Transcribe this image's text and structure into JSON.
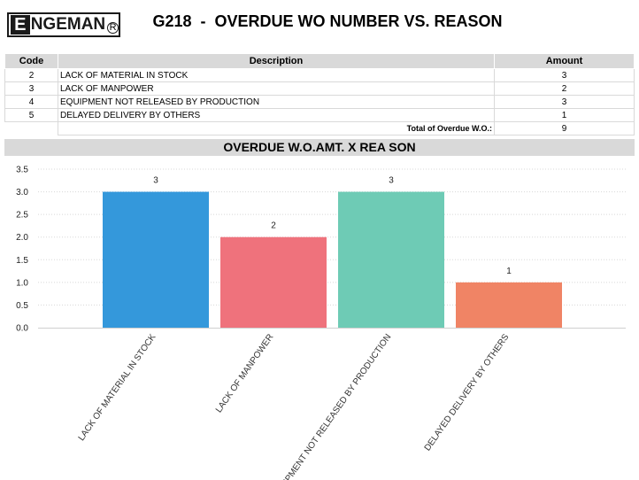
{
  "header": {
    "logo_text": "ENGEMAN",
    "logo_initial": "E",
    "logo_rest": "NGEMAN",
    "title": "G218  -  OVERDUE WO NUMBER VS. REASON"
  },
  "table": {
    "headers": {
      "code": "Code",
      "description": "Description",
      "amount": "Amount"
    },
    "rows": [
      {
        "code": "2",
        "description": "LACK OF MATERIAL IN STOCK",
        "amount": "3"
      },
      {
        "code": "3",
        "description": "LACK OF MANPOWER",
        "amount": "2"
      },
      {
        "code": "4",
        "description": "EQUIPMENT NOT RELEASED BY PRODUCTION",
        "amount": "3"
      },
      {
        "code": "5",
        "description": "DELAYED DELIVERY BY OTHERS",
        "amount": "1"
      }
    ],
    "total_label": "Total of Overdue W.O.:",
    "total_value": "9"
  },
  "chart_title": "OVERDUE W.O.AMT. X REA SON",
  "chart_data": {
    "type": "bar",
    "title": "OVERDUE W.O.AMT. X REA SON",
    "categories": [
      "LACK OF MATERIAL IN STOCK",
      "LACK OF MANPOWER",
      "EQUIPMENT NOT RELEASED BY PRODUCTION",
      "DELAYED DELIVERY BY OTHERS"
    ],
    "values": [
      3,
      2,
      3,
      1
    ],
    "data_labels": [
      "3",
      "2",
      "3",
      "1"
    ],
    "colors": [
      "#3498db",
      "#ef727c",
      "#6ecbb5",
      "#f08465"
    ],
    "ylim": [
      0,
      3.5
    ],
    "yticks": [
      "0.0",
      "0.5",
      "1.0",
      "1.5",
      "2.0",
      "2.5",
      "3.0",
      "3.5"
    ],
    "grid": true,
    "legend": false,
    "xlabel": "",
    "ylabel": ""
  }
}
